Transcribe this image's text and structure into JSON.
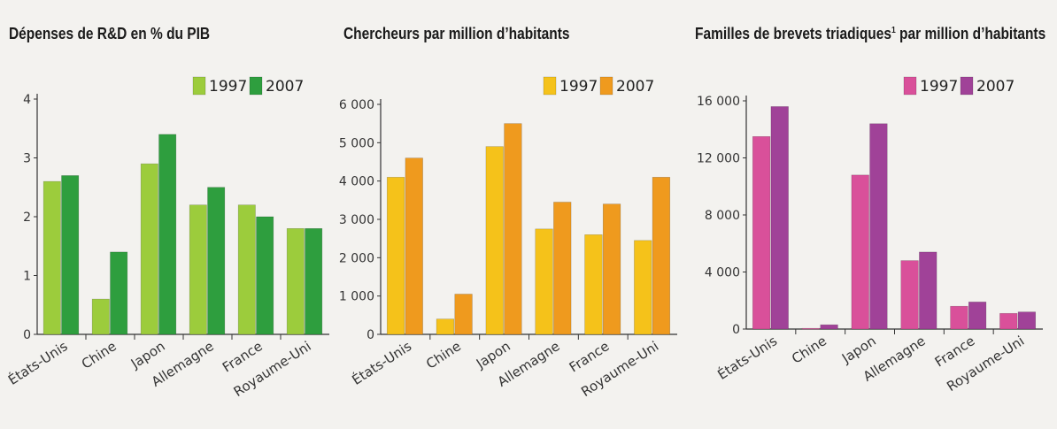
{
  "chart_data": [
    {
      "type": "bar",
      "title": "Dépenses de R&D en % du PIB",
      "title_sup": "",
      "categories": [
        "États-Unis",
        "Chine",
        "Japon",
        "Allemagne",
        "France",
        "Royaume-Uni"
      ],
      "series": [
        {
          "name": "1997",
          "color": "#9ccc3c",
          "values": [
            2.6,
            0.6,
            2.9,
            2.2,
            2.2,
            1.8
          ]
        },
        {
          "name": "2007",
          "color": "#2e9e3e",
          "values": [
            2.7,
            1.4,
            3.4,
            2.5,
            2.0,
            1.8
          ]
        }
      ],
      "ylim": [
        0,
        4
      ],
      "yticks": [
        0,
        1,
        2,
        3,
        4
      ],
      "ytick_labels": [
        "0",
        "1",
        "2",
        "3",
        "4"
      ],
      "grid": false,
      "legend_position": "top-right",
      "xlabel": "",
      "ylabel": ""
    },
    {
      "type": "bar",
      "title": "Chercheurs par million d’habitants",
      "title_sup": "",
      "categories": [
        "États-Unis",
        "Chine",
        "Japon",
        "Allemagne",
        "France",
        "Royaume-Uni"
      ],
      "series": [
        {
          "name": "1997",
          "color": "#f5c21a",
          "values": [
            4100,
            400,
            4900,
            2750,
            2600,
            2450
          ]
        },
        {
          "name": "2007",
          "color": "#ef9a1e",
          "values": [
            4600,
            1050,
            5500,
            3450,
            3400,
            4100
          ]
        }
      ],
      "ylim": [
        0,
        6000
      ],
      "yticks": [
        0,
        1000,
        2000,
        3000,
        4000,
        5000,
        6000
      ],
      "ytick_labels": [
        "0",
        "1 000",
        "2 000",
        "3 000",
        "4 000",
        "5 000",
        "6 000"
      ],
      "grid": false,
      "legend_position": "top-right",
      "xlabel": "",
      "ylabel": ""
    },
    {
      "type": "bar",
      "title": "Familles de brevets triadiques",
      "title_sup": "1",
      "title_suffix": " par million d’habitants",
      "categories": [
        "États-Unis",
        "Chine",
        "Japon",
        "Allemagne",
        "France",
        "Royaume-Uni"
      ],
      "series": [
        {
          "name": "1997",
          "color": "#d9509a",
          "values": [
            13500,
            50,
            10800,
            4800,
            1600,
            1100
          ]
        },
        {
          "name": "2007",
          "color": "#a04298",
          "values": [
            15600,
            300,
            14400,
            5400,
            1900,
            1200
          ]
        }
      ],
      "ylim": [
        0,
        16000
      ],
      "yticks": [
        0,
        4000,
        8000,
        12000,
        16000
      ],
      "ytick_labels": [
        "0",
        "4 000",
        "8 000",
        "12 000",
        "16 000"
      ],
      "grid": false,
      "legend_position": "top-right",
      "xlabel": "",
      "ylabel": ""
    }
  ]
}
